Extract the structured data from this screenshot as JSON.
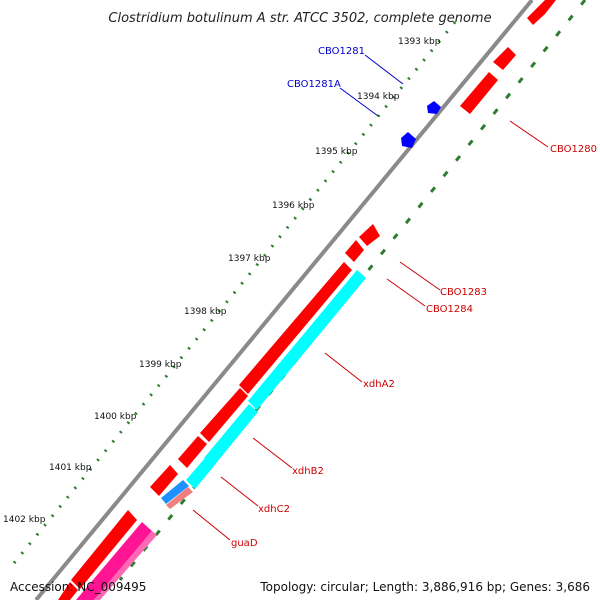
{
  "title": "Clostridium botulinum A str. ATCC 3502, complete genome",
  "ticks": [
    "1393 kbp",
    "1394 kbp",
    "1395 kbp",
    "1396 kbp",
    "1397 kbp",
    "1398 kbp",
    "1399 kbp",
    "1400 kbp",
    "1401 kbp",
    "1402 kbp"
  ],
  "genes": {
    "cbo1281": "CBO1281",
    "cbo1281a": "CBO1281A",
    "cbo1280": "CBO1280",
    "cbo1283": "CBO1283",
    "cbo1284": "CBO1284",
    "xdha2": "xdhA2",
    "xdhb2": "xdhB2",
    "xdhc2": "xdhC2",
    "guad": "guaD"
  },
  "colors": {
    "forward_gene": "#ff0000",
    "reverse_gene": "#0000ff",
    "cds_match": "#00ffff",
    "alt_match": "#ff1493",
    "tick": "#2e7d2e",
    "backbone": "#8a8a8a",
    "reverse_label": "#0000cc",
    "forward_label": "#cc0000"
  },
  "footer": {
    "accession": "Accession: NC_009495",
    "stats": "Topology: circular; Length: 3,886,916 bp; Genes: 3,686"
  }
}
